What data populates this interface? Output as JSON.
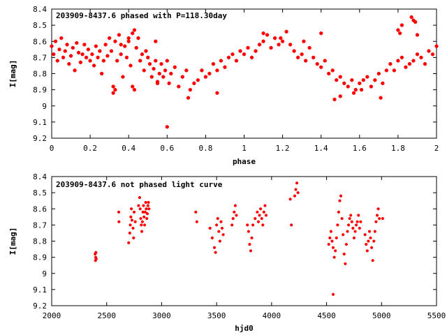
{
  "chart_data": [
    {
      "type": "scatter",
      "title": "203909-8437.6 phased with P=118.30day",
      "xlabel": "phase",
      "ylabel": "I[mag]",
      "xlim": [
        0,
        2
      ],
      "ylim": [
        9.2,
        8.4
      ],
      "y_inverted": true,
      "grid": false,
      "marker_color": "#ff0000",
      "x_ticks": [
        "0",
        "0.2",
        "0.4",
        "0.6",
        "0.8",
        "1",
        "1.2",
        "1.4",
        "1.6",
        "1.8",
        "2"
      ],
      "x_tick_values": [
        0,
        0.2,
        0.4,
        0.6,
        0.8,
        1,
        1.2,
        1.4,
        1.6,
        1.8,
        2
      ],
      "y_ticks": [
        "8.4",
        "8.5",
        "8.6",
        "8.7",
        "8.8",
        "8.9",
        "9",
        "9.1",
        "9.2"
      ],
      "y_tick_values": [
        8.4,
        8.5,
        8.6,
        8.7,
        8.8,
        8.9,
        9.0,
        9.1,
        9.2
      ],
      "series": [
        {
          "x": [
            0.0,
            0.01,
            0.02,
            0.03,
            0.04,
            0.05,
            0.06,
            0.07,
            0.08,
            0.09,
            0.1,
            0.11,
            0.12,
            0.13,
            0.14,
            0.15,
            0.16,
            0.17,
            0.18,
            0.19,
            0.2,
            0.21,
            0.22,
            0.23,
            0.24,
            0.25,
            0.26,
            0.27,
            0.28,
            0.29,
            0.3,
            0.31,
            0.32,
            0.33,
            0.34,
            0.35,
            0.36,
            0.37,
            0.38,
            0.39,
            0.4,
            0.41,
            0.42,
            0.43,
            0.44,
            0.45,
            0.46,
            0.47,
            0.48,
            0.49,
            0.5,
            0.51,
            0.52,
            0.53,
            0.54,
            0.55,
            0.56,
            0.57,
            0.58,
            0.59,
            0.6,
            0.62,
            0.64,
            0.66,
            0.68,
            0.7,
            0.72,
            0.74,
            0.76,
            0.78,
            0.8,
            0.82,
            0.84,
            0.86,
            0.88,
            0.9,
            0.92,
            0.94,
            0.96,
            0.98,
            1.0,
            1.02,
            1.04,
            1.06,
            1.08,
            1.1,
            1.12,
            1.14,
            1.16,
            1.18,
            1.2,
            1.22,
            1.24,
            1.26,
            1.28,
            1.3,
            1.32,
            1.34,
            1.36,
            1.38,
            1.4,
            1.42,
            1.44,
            1.46,
            1.48,
            1.5,
            1.52,
            1.54,
            1.56,
            1.58,
            1.6,
            1.62,
            1.64,
            1.66,
            1.68,
            1.7,
            1.72,
            1.74,
            1.76,
            1.78,
            1.8,
            1.82,
            1.84,
            1.86,
            1.88,
            1.9,
            1.92,
            1.94,
            1.96,
            1.98,
            2.0
          ],
          "y": [
            8.63,
            8.68,
            8.6,
            8.72,
            8.65,
            8.58,
            8.7,
            8.66,
            8.62,
            8.74,
            8.69,
            8.64,
            8.78,
            8.61,
            8.67,
            8.73,
            8.68,
            8.62,
            8.7,
            8.65,
            8.72,
            8.68,
            8.75,
            8.63,
            8.7,
            8.66,
            8.8,
            8.72,
            8.62,
            8.69,
            8.58,
            8.66,
            8.92,
            8.6,
            8.72,
            8.56,
            8.68,
            8.82,
            8.63,
            8.7,
            8.6,
            8.75,
            8.55,
            8.9,
            8.64,
            8.58,
            8.72,
            8.68,
            8.78,
            8.66,
            8.7,
            8.74,
            8.82,
            8.77,
            8.72,
            8.85,
            8.8,
            8.74,
            8.82,
            8.78,
            8.72,
            8.8,
            8.76,
            8.88,
            8.82,
            8.78,
            8.9,
            8.86,
            8.84,
            8.78,
            8.82,
            8.8,
            8.74,
            8.78,
            8.72,
            8.76,
            8.7,
            8.68,
            8.72,
            8.66,
            8.68,
            8.64,
            8.7,
            8.66,
            8.62,
            8.6,
            8.56,
            8.64,
            8.58,
            8.62,
            8.6,
            8.54,
            8.62,
            8.66,
            8.7,
            8.68,
            8.72,
            8.64,
            8.7,
            8.74,
            8.76,
            8.72,
            8.8,
            8.78,
            8.84,
            8.82,
            8.86,
            8.88,
            8.84,
            8.9,
            8.86,
            8.84,
            8.82,
            8.88,
            8.84,
            8.8,
            8.86,
            8.78,
            8.74,
            8.78,
            8.72,
            8.7,
            8.76,
            8.74,
            8.72,
            8.68,
            8.7,
            8.74,
            8.66,
            8.68,
            8.63
          ]
        },
        {
          "x": [
            0.36,
            0.4,
            0.43,
            0.6,
            0.61,
            0.71,
            0.86,
            1.1,
            1.19,
            1.31,
            1.4,
            1.47,
            1.5,
            1.57,
            1.61,
            1.71,
            1.82,
            1.87,
            1.88,
            1.89,
            1.9,
            1.8,
            1.81,
            0.32,
            0.33,
            0.42,
            0.54,
            0.55
          ],
          "y": [
            8.62,
            8.58,
            8.53,
            9.13,
            8.86,
            8.95,
            8.92,
            8.55,
            8.58,
            8.6,
            8.55,
            8.96,
            8.94,
            8.92,
            8.9,
            8.95,
            8.5,
            8.45,
            8.47,
            8.48,
            8.56,
            8.53,
            8.55,
            8.88,
            8.9,
            8.88,
            8.6,
            8.86
          ]
        }
      ]
    },
    {
      "type": "scatter",
      "title": "203909-8437.6 not phased light curve",
      "xlabel": "hjd0",
      "ylabel": "I[mag]",
      "xlim": [
        2000,
        5500
      ],
      "ylim": [
        9.2,
        8.4
      ],
      "y_inverted": true,
      "grid": false,
      "marker_color": "#ff0000",
      "x_ticks": [
        "2000",
        "2500",
        "3000",
        "3500",
        "4000",
        "4500",
        "5000",
        "5500"
      ],
      "x_tick_values": [
        2000,
        2500,
        3000,
        3500,
        4000,
        4500,
        5000,
        5500
      ],
      "y_ticks": [
        "8.4",
        "8.5",
        "8.6",
        "8.7",
        "8.8",
        "8.9",
        "9",
        "9.1",
        "9.2"
      ],
      "y_tick_values": [
        8.4,
        8.5,
        8.6,
        8.7,
        8.8,
        8.9,
        9.0,
        9.1,
        9.2
      ],
      "series": [
        {
          "x": [
            2395,
            2398,
            2400,
            2402,
            2405,
            2610,
            2612,
            2700,
            2710,
            2715,
            2720,
            2725,
            2730,
            2740,
            2745,
            2750,
            2760,
            2790,
            2800,
            2805,
            2810,
            2815,
            2820,
            2825,
            2830,
            2835,
            2840,
            2845,
            2850,
            2855,
            2860,
            2865,
            2870,
            2875,
            2880,
            2885,
            3310,
            3320,
            3440,
            3460,
            3480,
            3490,
            3500,
            3510,
            3520,
            3530,
            3540,
            3550,
            3560,
            3640,
            3650,
            3660,
            3670,
            3680,
            3780,
            3790,
            3800,
            3810,
            3820,
            3830,
            3850,
            3870,
            3880,
            3890,
            3900,
            3910,
            3920,
            3930,
            3940,
            3950,
            4170,
            4180,
            4210,
            4220,
            4230,
            4240,
            4520,
            4530,
            4540,
            4550,
            4560,
            4570,
            4580,
            4590,
            4600,
            4610,
            4620,
            4630,
            4640,
            4650,
            4660,
            4670,
            4680,
            4690,
            4700,
            4710,
            4720,
            4730,
            4740,
            4750,
            4760,
            4770,
            4780,
            4790,
            4800,
            4810,
            4850,
            4860,
            4870,
            4880,
            4890,
            4900,
            4910,
            4920,
            4930,
            4940,
            4950,
            4960,
            4970,
            4980,
            5010
          ],
          "y": [
            8.88,
            8.92,
            8.9,
            8.87,
            8.91,
            8.62,
            8.68,
            8.81,
            8.75,
            8.7,
            8.65,
            8.6,
            8.67,
            8.72,
            8.78,
            8.62,
            8.68,
            8.58,
            8.53,
            8.6,
            8.66,
            8.7,
            8.74,
            8.68,
            8.62,
            8.58,
            8.65,
            8.7,
            8.62,
            8.56,
            8.6,
            8.66,
            8.63,
            8.58,
            8.56,
            8.6,
            8.62,
            8.68,
            8.72,
            8.78,
            8.84,
            8.87,
            8.7,
            8.66,
            8.74,
            8.8,
            8.68,
            8.72,
            8.76,
            8.7,
            8.66,
            8.62,
            8.58,
            8.64,
            8.7,
            8.74,
            8.82,
            8.86,
            8.78,
            8.7,
            8.66,
            8.62,
            8.68,
            8.64,
            8.6,
            8.66,
            8.7,
            8.62,
            8.58,
            8.64,
            8.54,
            8.7,
            8.52,
            8.48,
            8.44,
            8.5,
            8.82,
            8.78,
            8.74,
            8.8,
            8.84,
            8.9,
            8.86,
            8.78,
            8.7,
            8.62,
            8.55,
            8.52,
            8.66,
            8.76,
            8.88,
            8.94,
            8.82,
            8.74,
            8.7,
            8.66,
            8.64,
            8.68,
            8.72,
            8.78,
            8.74,
            8.7,
            8.68,
            8.64,
            8.72,
            8.68,
            8.76,
            8.82,
            8.86,
            8.8,
            8.74,
            8.78,
            8.84,
            8.92,
            8.8,
            8.74,
            8.68,
            8.64,
            8.6,
            8.66,
            8.66
          ],
          "x_extra": [
            4560
          ],
          "y_extra": [
            9.13
          ]
        }
      ]
    }
  ]
}
